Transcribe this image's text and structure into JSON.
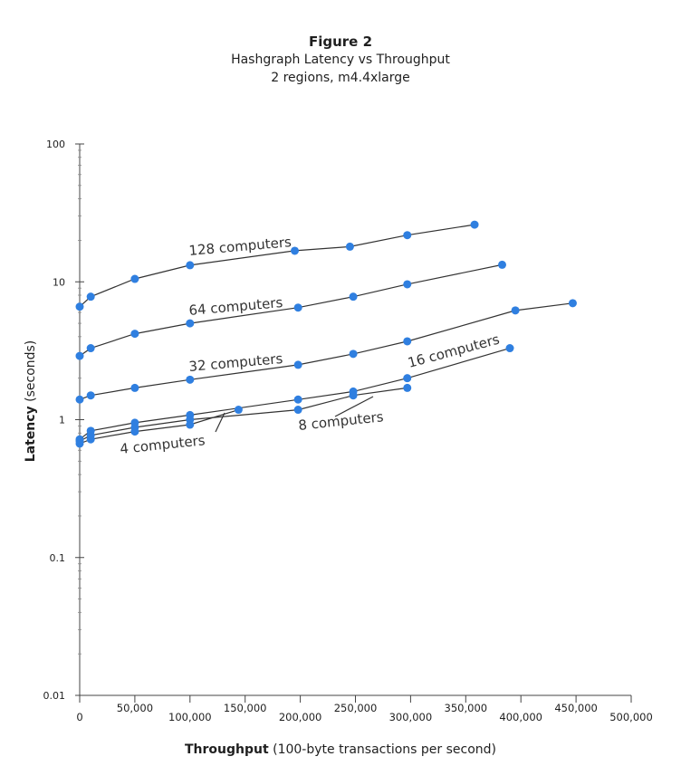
{
  "figure": {
    "label": "Figure 2",
    "title": "Hashgraph Latency vs Throughput",
    "subtitle": "2 regions, m4.4xlarge"
  },
  "chart_data": {
    "type": "line",
    "xlabel_bold": "Throughput",
    "xlabel_rest": " (100-byte transactions per second)",
    "ylabel_bold": "Latency",
    "ylabel_rest": " (seconds)",
    "xlim": [
      0,
      500000
    ],
    "ylim": [
      0.01,
      100
    ],
    "yscale": "log",
    "x_ticks": [
      {
        "value": 0,
        "label": "0"
      },
      {
        "value": 50000,
        "label": "50,000"
      },
      {
        "value": 100000,
        "label": "100,000"
      },
      {
        "value": 150000,
        "label": "150,000"
      },
      {
        "value": 200000,
        "label": "200,000"
      },
      {
        "value": 250000,
        "label": "250,000"
      },
      {
        "value": 300000,
        "label": "300,000"
      },
      {
        "value": 350000,
        "label": "350,000"
      },
      {
        "value": 400000,
        "label": "400,000"
      },
      {
        "value": 450000,
        "label": "450,000"
      },
      {
        "value": 500000,
        "label": "500,000"
      }
    ],
    "y_ticks": [
      {
        "value": 100,
        "label": "100"
      },
      {
        "value": 10,
        "label": "10"
      },
      {
        "value": 1,
        "label": "1"
      },
      {
        "value": 0.1,
        "label": "0.1"
      },
      {
        "value": 0.01,
        "label": "0.01"
      }
    ],
    "grid": false,
    "marker_color": "#2f7fe0",
    "line_color": "#333333",
    "series": [
      {
        "name": "128 computers",
        "x": [
          0,
          10000,
          50000,
          100000,
          195000,
          245000,
          297000,
          358000
        ],
        "y": [
          6.6,
          7.8,
          10.5,
          13.2,
          16.8,
          18.0,
          21.8,
          26.0
        ]
      },
      {
        "name": "64 computers",
        "x": [
          0,
          10000,
          50000,
          100000,
          198000,
          248000,
          297000,
          383000
        ],
        "y": [
          2.9,
          3.3,
          4.2,
          5.0,
          6.5,
          7.8,
          9.6,
          13.3
        ]
      },
      {
        "name": "32 computers",
        "x": [
          0,
          10000,
          50000,
          100000,
          198000,
          248000,
          297000,
          395000,
          447000
        ],
        "y": [
          1.4,
          1.5,
          1.7,
          1.95,
          2.5,
          3.0,
          3.7,
          6.2,
          7.0
        ]
      },
      {
        "name": "16 computers",
        "x": [
          0,
          10000,
          50000,
          100000,
          198000,
          248000,
          297000,
          390000
        ],
        "y": [
          0.72,
          0.83,
          0.95,
          1.08,
          1.4,
          1.6,
          2.0,
          3.3
        ]
      },
      {
        "name": "8 computers",
        "x": [
          0,
          10000,
          50000,
          100000,
          198000,
          248000,
          297000
        ],
        "y": [
          0.7,
          0.77,
          0.88,
          1.0,
          1.18,
          1.5,
          1.7
        ]
      },
      {
        "name": "4 computers",
        "x": [
          0,
          10000,
          50000,
          100000,
          144000
        ],
        "y": [
          0.67,
          0.72,
          0.82,
          0.92,
          1.18
        ]
      }
    ],
    "annotations": [
      {
        "text": "128 computers",
        "series": "128 computers"
      },
      {
        "text": "64 computers",
        "series": "64 computers"
      },
      {
        "text": "32 computers",
        "series": "32 computers"
      },
      {
        "text": "16 computers",
        "series": "16 computers"
      },
      {
        "text": "8 computers",
        "series": "8 computers"
      },
      {
        "text": "4 computers",
        "series": "4 computers"
      }
    ]
  }
}
